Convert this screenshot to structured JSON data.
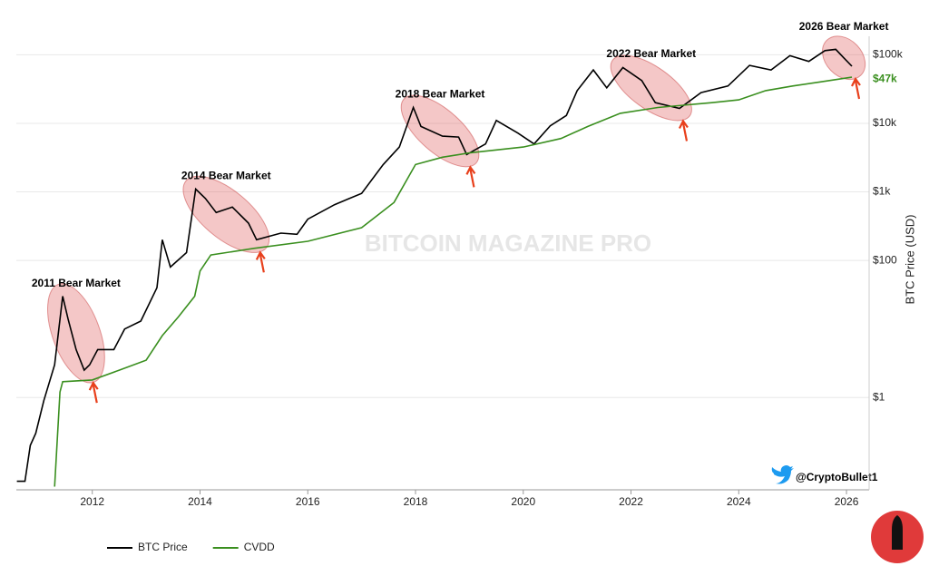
{
  "chart_data": {
    "type": "line",
    "y_axis_label": "BTC Price (USD)",
    "watermark": "BITCOIN MAGAZINE PRO",
    "credit": "@CryptoBullet1",
    "log_scale": true,
    "grid": true,
    "legend": "bottom-left",
    "xlim": [
      2010.59,
      2026.42
    ],
    "xticks": [
      2012,
      2014,
      2016,
      2018,
      2020,
      2022,
      2024,
      2026
    ],
    "ylim": [
      0.045,
      186000
    ],
    "yticks": [
      {
        "value": 1,
        "label": "$1"
      },
      {
        "value": 100,
        "label": "$100"
      },
      {
        "value": 1000,
        "label": "$1k"
      },
      {
        "value": 10000,
        "label": "$10k"
      },
      {
        "value": 100000,
        "label": "$100k"
      }
    ],
    "series": [
      {
        "name": "BTC Price",
        "color": "#000000",
        "x": [
          2010.6,
          2010.75,
          2010.85,
          2010.95,
          2011.1,
          2011.3,
          2011.45,
          2011.55,
          2011.7,
          2011.85,
          2011.95,
          2012.1,
          2012.4,
          2012.6,
          2012.9,
          2013.2,
          2013.3,
          2013.45,
          2013.75,
          2013.92,
          2014.1,
          2014.3,
          2014.6,
          2014.9,
          2015.05,
          2015.5,
          2015.8,
          2016.0,
          2016.5,
          2017.0,
          2017.4,
          2017.7,
          2017.96,
          2018.1,
          2018.5,
          2018.8,
          2018.95,
          2019.3,
          2019.5,
          2019.9,
          2020.2,
          2020.5,
          2020.8,
          2021.0,
          2021.3,
          2021.55,
          2021.85,
          2022.2,
          2022.45,
          2022.9,
          2023.3,
          2023.8,
          2024.2,
          2024.6,
          2024.95,
          2025.3,
          2025.6,
          2025.8,
          2025.95,
          2026.1
        ],
        "values": [
          0.06,
          0.06,
          0.2,
          0.3,
          0.9,
          3,
          30,
          14,
          5,
          2.5,
          3,
          5,
          5,
          10,
          13,
          40,
          200,
          80,
          130,
          1100,
          800,
          500,
          600,
          350,
          200,
          250,
          240,
          400,
          650,
          950,
          2500,
          4500,
          17000,
          9000,
          6500,
          6300,
          3500,
          5000,
          11000,
          7200,
          5000,
          9200,
          13000,
          30000,
          60000,
          33000,
          65000,
          42000,
          20000,
          16500,
          28000,
          35000,
          70000,
          60000,
          97000,
          80000,
          115000,
          120000,
          90000,
          68000
        ]
      },
      {
        "name": "CVDD",
        "color": "#3a8f1f",
        "x": [
          2011.3,
          2011.4,
          2011.45,
          2012.0,
          2012.5,
          2013.0,
          2013.3,
          2013.6,
          2013.9,
          2014.0,
          2014.2,
          2015.0,
          2016.0,
          2017.0,
          2017.6,
          2018.0,
          2018.5,
          2019.0,
          2020.0,
          2020.7,
          2021.2,
          2021.8,
          2022.5,
          2023.5,
          2024.0,
          2024.5,
          2025.0,
          2025.5,
          2026.1
        ],
        "values": [
          0.05,
          1.2,
          1.7,
          1.8,
          2.5,
          3.5,
          8,
          15,
          30,
          70,
          120,
          150,
          190,
          300,
          700,
          2500,
          3200,
          3700,
          4500,
          6000,
          9000,
          14000,
          17000,
          20000,
          22000,
          30000,
          35000,
          40000,
          47000
        ],
        "end_label": "$47k"
      }
    ],
    "annotations": [
      {
        "text": "2011 Bear Market",
        "start": 2011.45,
        "end": 2011.95
      },
      {
        "text": "2014 Bear Market",
        "start": 2013.92,
        "end": 2015.05
      },
      {
        "text": "2018 Bear Market",
        "start": 2017.96,
        "end": 2018.95
      },
      {
        "text": "2022 Bear Market",
        "start": 2021.85,
        "end": 2022.9
      },
      {
        "text": "2026 Bear Market",
        "start": 2025.8,
        "end": 2026.1
      }
    ]
  }
}
